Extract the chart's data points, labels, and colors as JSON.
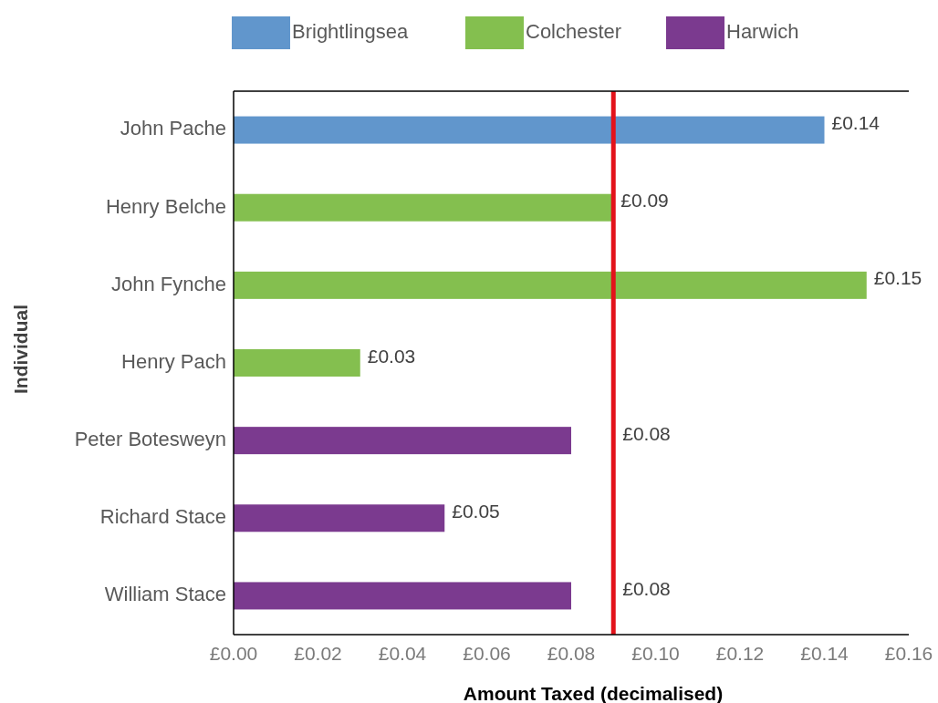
{
  "chart_data": {
    "type": "bar",
    "orientation": "horizontal",
    "xlabel": "Amount Taxed (decimalised)",
    "ylabel": "Individual",
    "categories": [
      "John Pache",
      "Henry Belche",
      "John Fynche",
      "Henry Pach",
      "Peter Botesweyn",
      "Richard Stace",
      "William Stace"
    ],
    "series": [
      {
        "name": "Brightlingsea",
        "color": "#6196cc",
        "values": [
          0.14,
          null,
          null,
          null,
          null,
          null,
          null
        ],
        "value_labels": [
          "£0.14",
          null,
          null,
          null,
          null,
          null,
          null
        ]
      },
      {
        "name": "Colchester",
        "color": "#84bf4f",
        "values": [
          null,
          0.09,
          0.15,
          0.03,
          null,
          null,
          null
        ],
        "value_labels": [
          null,
          "£0.09",
          "£0.15",
          "£0.03",
          null,
          null,
          null
        ]
      },
      {
        "name": "Harwich",
        "color": "#7b3a8f",
        "values": [
          null,
          null,
          null,
          null,
          0.08,
          0.05,
          0.08
        ],
        "value_labels": [
          null,
          null,
          null,
          null,
          "£0.08",
          "£0.05",
          "£0.08"
        ]
      }
    ],
    "xlim": [
      0,
      0.16
    ],
    "xticks": [
      {
        "value": 0,
        "label": "£0.00"
      },
      {
        "value": 0.02,
        "label": "£0.02"
      },
      {
        "value": 0.04,
        "label": "£0.04"
      },
      {
        "value": 0.06,
        "label": "£0.06"
      },
      {
        "value": 0.08,
        "label": "£0.08"
      },
      {
        "value": 0.1,
        "label": "£0.10"
      },
      {
        "value": 0.12,
        "label": "£0.12"
      },
      {
        "value": 0.14,
        "label": "£0.14"
      },
      {
        "value": 0.16,
        "label": "£0.16"
      }
    ],
    "ref_lines": [
      {
        "axis": "x",
        "value": 0.09,
        "color": "#e3131b"
      }
    ],
    "legend": "top",
    "grid": false
  }
}
